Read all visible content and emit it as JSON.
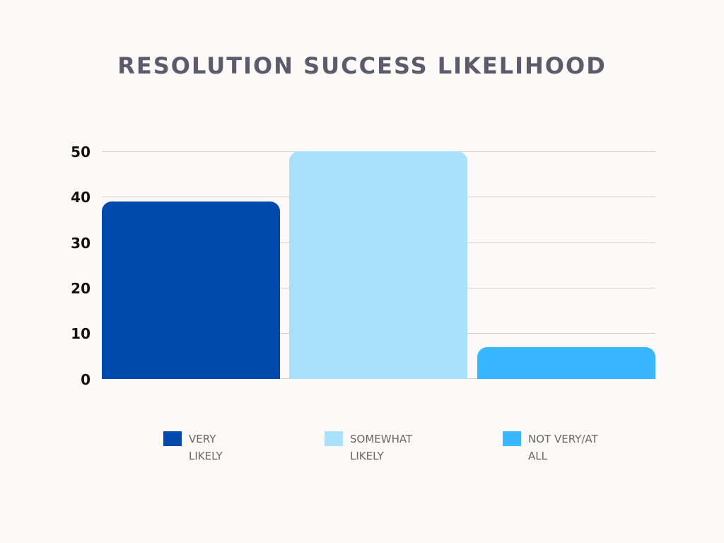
{
  "chart_data": {
    "type": "bar",
    "title": "RESOLUTION SUCCESS LIKELIHOOD",
    "categories": [
      "VERY LIKELY",
      "SOMEWHAT LIKELY",
      "NOT VERY/AT ALL"
    ],
    "values": [
      39,
      50,
      7
    ],
    "colors": [
      "#004aad",
      "#a9e1fb",
      "#38b6ff"
    ],
    "xlabel": "",
    "ylabel": "",
    "ylim": [
      0,
      50
    ],
    "yticks": [
      "0",
      "10",
      "20",
      "30",
      "40",
      "50"
    ],
    "grid": true,
    "legend_position": "bottom"
  },
  "legend": [
    {
      "line1": "VERY",
      "line2": "LIKELY",
      "color": "#004aad"
    },
    {
      "line1": "SOMEWHAT",
      "line2": "LIKELY",
      "color": "#a9e1fb"
    },
    {
      "line1": "NOT VERY/AT",
      "line2": "ALL",
      "color": "#38b6ff"
    }
  ]
}
